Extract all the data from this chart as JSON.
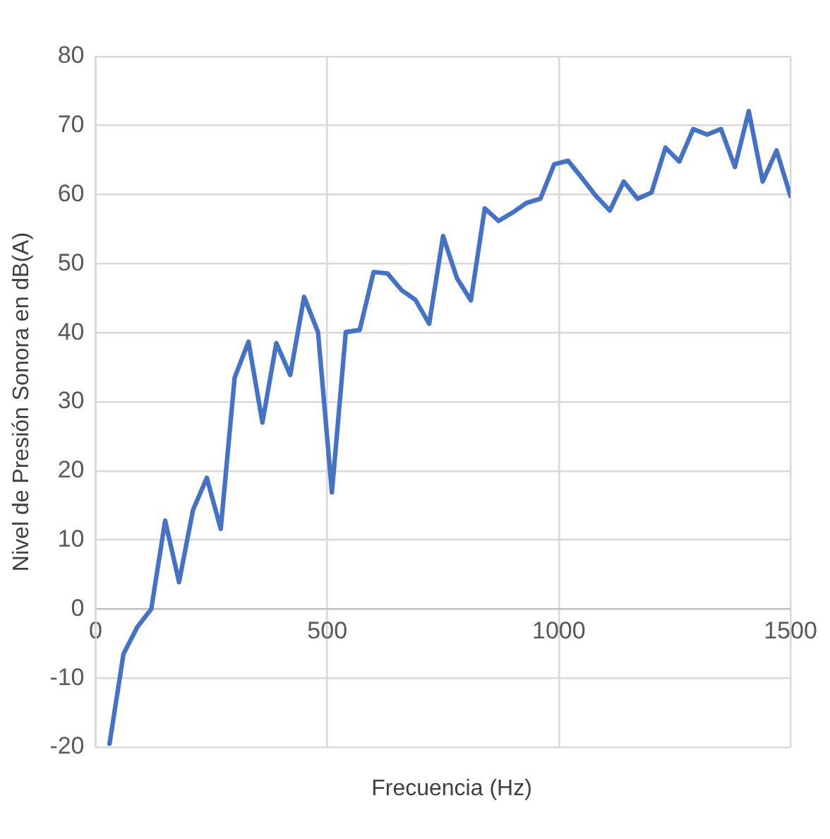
{
  "chart_data": {
    "type": "line",
    "xlabel": "Frecuencia (Hz)",
    "ylabel": "Nivel de Presión Sonora en dB(A)",
    "x": [
      30,
      60,
      90,
      120,
      150,
      180,
      210,
      240,
      270,
      300,
      330,
      360,
      390,
      420,
      450,
      480,
      510,
      540,
      570,
      600,
      630,
      660,
      690,
      720,
      750,
      780,
      810,
      840,
      870,
      900,
      930,
      960,
      990,
      1020,
      1050,
      1080,
      1110,
      1140,
      1170,
      1200,
      1230,
      1260,
      1290,
      1320,
      1350,
      1380,
      1410,
      1440,
      1470,
      1500
    ],
    "series": [
      {
        "color": "#4472c4",
        "values": [
          -19.5,
          -6.5,
          -2.6,
          0,
          12.8,
          3.9,
          14.3,
          19.0,
          11.6,
          33.5,
          38.7,
          27.0,
          38.5,
          33.9,
          45.2,
          40.1,
          16.9,
          40.1,
          40.4,
          48.8,
          48.6,
          46.2,
          44.8,
          41.3,
          54.0,
          47.9,
          44.7,
          58.0,
          56.2,
          57.4,
          58.8,
          59.4,
          64.4,
          64.9,
          62.4,
          59.8,
          57.7,
          61.9,
          59.4,
          60.3,
          66.8,
          64.8,
          69.5,
          68.7,
          69.5,
          64.0,
          72.1,
          61.9,
          66.4,
          59.8
        ]
      }
    ],
    "xlim": [
      0,
      1500
    ],
    "xticks": [
      0,
      500,
      1000,
      1500
    ],
    "ylim": [
      -20,
      80
    ],
    "yticks": [
      -20,
      -10,
      0,
      10,
      20,
      30,
      40,
      50,
      60,
      70,
      80
    ],
    "grid": true,
    "legend": false,
    "marker": "none",
    "line_style": "solid"
  }
}
